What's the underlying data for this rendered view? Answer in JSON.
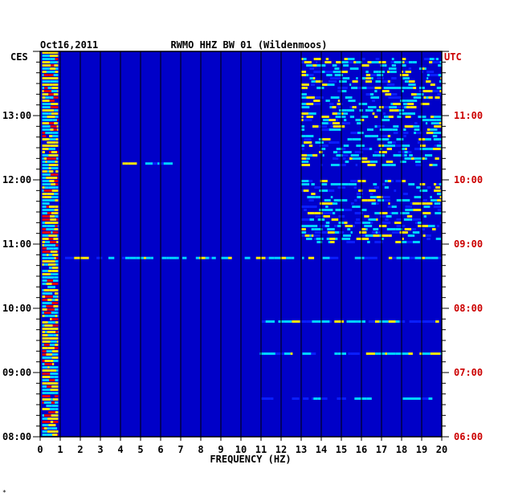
{
  "chart_data": {
    "type": "heatmap",
    "date": "Oct16,2011",
    "title": "RWMO HHZ BW 01 (Wildenmoos)",
    "xlabel": "FREQUENCY (HZ)",
    "left_timezone": "CES",
    "right_timezone": "UTC",
    "xlim": [
      0,
      20
    ],
    "x_ticks": [
      "0",
      "1",
      "2",
      "3",
      "4",
      "5",
      "6",
      "7",
      "8",
      "9",
      "10",
      "11",
      "12",
      "13",
      "14",
      "15",
      "16",
      "17",
      "18",
      "19",
      "20"
    ],
    "left_time_ticks": [
      "13:00",
      "12:00",
      "11:00",
      "10:00",
      "09:00",
      "08:00"
    ],
    "right_time_ticks": [
      "11:00",
      "10:00",
      "09:00",
      "08:00",
      "07:00",
      "06:00"
    ],
    "left_ticks_hours": [
      13,
      12,
      11,
      10,
      9,
      8
    ],
    "ylim_hours": [
      8,
      14
    ],
    "grid": true,
    "colors": {
      "background": "#0000c8",
      "low": "#0a1eff",
      "mid": "#00d2ff",
      "high": "#ffe600",
      "peak": "#e60000",
      "utc_label": "#cc0000",
      "axis": "#000000"
    },
    "spectral_features": [
      {
        "description": "strong low-frequency band",
        "freq_range": [
          0.1,
          0.9
        ],
        "time_range": [
          8.0,
          14.0
        ],
        "intensity": "high"
      },
      {
        "description": "high-frequency noise",
        "freq_range": [
          13,
          20
        ],
        "time_range": [
          12.2,
          13.9
        ],
        "intensity": "medium"
      },
      {
        "description": "high-frequency noise",
        "freq_range": [
          13,
          20
        ],
        "time_range": [
          11.0,
          12.0
        ],
        "intensity": "medium"
      },
      {
        "description": "narrow line",
        "freq_range": [
          4.1,
          6.6
        ],
        "time_range": [
          12.24,
          12.26
        ],
        "intensity": "medium"
      },
      {
        "description": "broadband line",
        "freq_range": [
          1,
          20
        ],
        "time_range": [
          10.77,
          10.79
        ],
        "intensity": "medium"
      },
      {
        "description": "band",
        "freq_range": [
          10.5,
          20
        ],
        "time_range": [
          9.78,
          9.8
        ],
        "intensity": "medium"
      },
      {
        "description": "band",
        "freq_range": [
          10.5,
          20
        ],
        "time_range": [
          9.28,
          9.3
        ],
        "intensity": "medium"
      },
      {
        "description": "band",
        "freq_range": [
          11,
          20
        ],
        "time_range": [
          8.58,
          8.6
        ],
        "intensity": "low"
      }
    ]
  },
  "footer_mark": "*"
}
